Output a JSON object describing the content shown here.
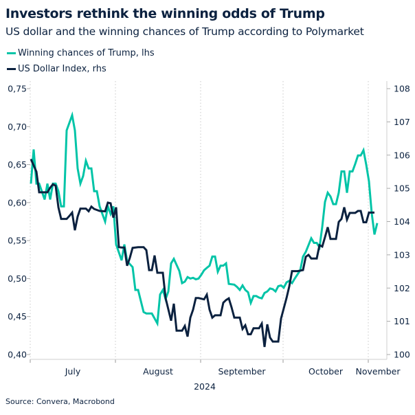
{
  "header": {
    "title": "Investors rethink the winning odds of Trump",
    "subtitle": "US dollar and the winning chances of Trump according to Polymarket"
  },
  "source": "Source: Convera, Macrobond",
  "colors": {
    "trump": "#00c4a7",
    "dxy": "#0b213f"
  },
  "chart_data": {
    "type": "line",
    "title": "Investors rethink the winning odds of Trump",
    "subtitle": "US dollar and the winning chances of Trump according to Polymarket",
    "year": "2024",
    "x_ticks": [
      "July",
      "August",
      "September",
      "October",
      "November"
    ],
    "y_left": {
      "ticks": [
        "0,40",
        "0,45",
        "0,50",
        "0,55",
        "0,60",
        "0,65",
        "0,70",
        "0,75"
      ],
      "range": [
        0.4,
        0.75
      ]
    },
    "y_right": {
      "ticks": [
        "100",
        "101",
        "102",
        "103",
        "104",
        "105",
        "106",
        "107",
        "108"
      ],
      "range": [
        100,
        108
      ]
    },
    "xlim": [
      "2024-07-01",
      "2024-11-05"
    ],
    "legend": "top-left",
    "grid": "vertical dotted lines at month starts",
    "series": [
      {
        "name": "Winning chances of Trump, lhs",
        "axis": "left",
        "color": "#00c4a7",
        "points": [
          [
            "2024-07-01",
            0.625
          ],
          [
            "2024-07-02",
            0.67
          ],
          [
            "2024-07-03",
            0.625
          ],
          [
            "2024-07-04",
            0.625
          ],
          [
            "2024-07-06",
            0.604
          ],
          [
            "2024-07-07",
            0.625
          ],
          [
            "2024-07-08",
            0.604
          ],
          [
            "2024-07-09",
            0.625
          ],
          [
            "2024-07-10",
            0.625
          ],
          [
            "2024-07-11",
            0.615
          ],
          [
            "2024-07-12",
            0.595
          ],
          [
            "2024-07-13",
            0.595
          ],
          [
            "2024-07-14",
            0.695
          ],
          [
            "2024-07-16",
            0.715
          ],
          [
            "2024-07-17",
            0.695
          ],
          [
            "2024-07-18",
            0.645
          ],
          [
            "2024-07-19",
            0.625
          ],
          [
            "2024-07-20",
            0.635
          ],
          [
            "2024-07-21",
            0.655
          ],
          [
            "2024-07-22",
            0.645
          ],
          [
            "2024-07-23",
            0.645
          ],
          [
            "2024-07-24",
            0.615
          ],
          [
            "2024-07-25",
            0.615
          ],
          [
            "2024-07-26",
            0.595
          ],
          [
            "2024-07-28",
            0.575
          ],
          [
            "2024-07-29",
            0.595
          ],
          [
            "2024-07-30",
            0.585
          ],
          [
            "2024-07-31",
            0.595
          ],
          [
            "2024-08-01",
            0.545
          ],
          [
            "2024-08-03",
            0.524
          ],
          [
            "2024-08-04",
            0.545
          ],
          [
            "2024-08-05",
            0.523
          ],
          [
            "2024-08-07",
            0.515
          ],
          [
            "2024-08-08",
            0.485
          ],
          [
            "2024-08-09",
            0.485
          ],
          [
            "2024-08-11",
            0.456
          ],
          [
            "2024-08-12",
            0.454
          ],
          [
            "2024-08-14",
            0.454
          ],
          [
            "2024-08-16",
            0.441
          ],
          [
            "2024-08-17",
            0.479
          ],
          [
            "2024-08-18",
            0.485
          ],
          [
            "2024-08-19",
            0.473
          ],
          [
            "2024-08-20",
            0.483
          ],
          [
            "2024-08-21",
            0.52
          ],
          [
            "2024-08-22",
            0.526
          ],
          [
            "2024-08-24",
            0.51
          ],
          [
            "2024-08-25",
            0.494
          ],
          [
            "2024-08-26",
            0.496
          ],
          [
            "2024-08-27",
            0.502
          ],
          [
            "2024-08-28",
            0.5
          ],
          [
            "2024-08-29",
            0.501
          ],
          [
            "2024-08-30",
            0.499
          ],
          [
            "2024-08-31",
            0.5
          ],
          [
            "2024-09-01",
            0.505
          ],
          [
            "2024-09-02",
            0.511
          ],
          [
            "2024-09-03",
            0.514
          ],
          [
            "2024-09-04",
            0.517
          ],
          [
            "2024-09-05",
            0.529
          ],
          [
            "2024-09-06",
            0.529
          ],
          [
            "2024-09-07",
            0.509
          ],
          [
            "2024-09-08",
            0.517
          ],
          [
            "2024-09-09",
            0.517
          ],
          [
            "2024-09-10",
            0.52
          ],
          [
            "2024-09-11",
            0.493
          ],
          [
            "2024-09-13",
            0.492
          ],
          [
            "2024-09-14",
            0.489
          ],
          [
            "2024-09-15",
            0.485
          ],
          [
            "2024-09-16",
            0.491
          ],
          [
            "2024-09-17",
            0.485
          ],
          [
            "2024-09-18",
            0.482
          ],
          [
            "2024-09-19",
            0.468
          ],
          [
            "2024-09-20",
            0.477
          ],
          [
            "2024-09-21",
            0.477
          ],
          [
            "2024-09-22",
            0.475
          ],
          [
            "2024-09-23",
            0.474
          ],
          [
            "2024-09-24",
            0.481
          ],
          [
            "2024-09-25",
            0.483
          ],
          [
            "2024-09-26",
            0.487
          ],
          [
            "2024-09-27",
            0.486
          ],
          [
            "2024-09-28",
            0.483
          ],
          [
            "2024-09-29",
            0.49
          ],
          [
            "2024-09-30",
            0.491
          ],
          [
            "2024-10-01",
            0.488
          ],
          [
            "2024-10-02",
            0.495
          ],
          [
            "2024-10-03",
            0.497
          ],
          [
            "2024-10-04",
            0.494
          ],
          [
            "2024-10-05",
            0.5
          ],
          [
            "2024-10-07",
            0.511
          ],
          [
            "2024-10-08",
            0.529
          ],
          [
            "2024-10-09",
            0.535
          ],
          [
            "2024-10-10",
            0.544
          ],
          [
            "2024-10-11",
            0.553
          ],
          [
            "2024-10-12",
            0.547
          ],
          [
            "2024-10-13",
            0.547
          ],
          [
            "2024-10-14",
            0.541
          ],
          [
            "2024-10-15",
            0.568
          ],
          [
            "2024-10-16",
            0.601
          ],
          [
            "2024-10-17",
            0.613
          ],
          [
            "2024-10-18",
            0.608
          ],
          [
            "2024-10-19",
            0.598
          ],
          [
            "2024-10-20",
            0.598
          ],
          [
            "2024-10-21",
            0.613
          ],
          [
            "2024-10-22",
            0.641
          ],
          [
            "2024-10-23",
            0.641
          ],
          [
            "2024-10-24",
            0.613
          ],
          [
            "2024-10-25",
            0.641
          ],
          [
            "2024-10-26",
            0.641
          ],
          [
            "2024-10-27",
            0.651
          ],
          [
            "2024-10-28",
            0.662
          ],
          [
            "2024-10-29",
            0.662
          ],
          [
            "2024-10-30",
            0.669
          ],
          [
            "2024-10-31",
            0.65
          ],
          [
            "2024-11-01",
            0.628
          ],
          [
            "2024-11-02",
            0.586
          ],
          [
            "2024-11-03",
            0.558
          ],
          [
            "2024-11-04",
            0.573
          ]
        ]
      },
      {
        "name": "US Dollar Index, rhs",
        "axis": "right",
        "color": "#0b213f",
        "points": [
          [
            "2024-07-01",
            105.88
          ],
          [
            "2024-07-03",
            105.5
          ],
          [
            "2024-07-04",
            104.88
          ],
          [
            "2024-07-05",
            104.88
          ],
          [
            "2024-07-07",
            104.88
          ],
          [
            "2024-07-08",
            105.02
          ],
          [
            "2024-07-09",
            105.12
          ],
          [
            "2024-07-10",
            105.08
          ],
          [
            "2024-07-11",
            104.43
          ],
          [
            "2024-07-12",
            104.08
          ],
          [
            "2024-07-14",
            104.08
          ],
          [
            "2024-07-15",
            104.17
          ],
          [
            "2024-07-16",
            104.27
          ],
          [
            "2024-07-17",
            103.74
          ],
          [
            "2024-07-18",
            104.15
          ],
          [
            "2024-07-19",
            104.39
          ],
          [
            "2024-07-21",
            104.39
          ],
          [
            "2024-07-22",
            104.31
          ],
          [
            "2024-07-23",
            104.45
          ],
          [
            "2024-07-24",
            104.38
          ],
          [
            "2024-07-26",
            104.32
          ],
          [
            "2024-07-28",
            104.31
          ],
          [
            "2024-07-29",
            104.57
          ],
          [
            "2024-07-30",
            104.55
          ],
          [
            "2024-07-31",
            104.12
          ],
          [
            "2024-08-01",
            104.43
          ],
          [
            "2024-08-02",
            103.23
          ],
          [
            "2024-08-03",
            103.22
          ],
          [
            "2024-08-04",
            103.22
          ],
          [
            "2024-08-05",
            102.67
          ],
          [
            "2024-08-06",
            102.91
          ],
          [
            "2024-08-07",
            103.21
          ],
          [
            "2024-08-09",
            103.23
          ],
          [
            "2024-08-11",
            103.23
          ],
          [
            "2024-08-12",
            103.14
          ],
          [
            "2024-08-13",
            102.54
          ],
          [
            "2024-08-14",
            102.54
          ],
          [
            "2024-08-15",
            102.98
          ],
          [
            "2024-08-16",
            102.46
          ],
          [
            "2024-08-18",
            102.46
          ],
          [
            "2024-08-19",
            101.7
          ],
          [
            "2024-08-21",
            101.02
          ],
          [
            "2024-08-22",
            101.53
          ],
          [
            "2024-08-23",
            100.72
          ],
          [
            "2024-08-25",
            100.72
          ],
          [
            "2024-08-26",
            100.86
          ],
          [
            "2024-08-27",
            100.54
          ],
          [
            "2024-08-28",
            101.11
          ],
          [
            "2024-08-29",
            101.35
          ],
          [
            "2024-08-30",
            101.7
          ],
          [
            "2024-08-31",
            101.7
          ],
          [
            "2024-09-02",
            101.66
          ],
          [
            "2024-09-03",
            101.8
          ],
          [
            "2024-09-04",
            101.35
          ],
          [
            "2024-09-05",
            101.11
          ],
          [
            "2024-09-06",
            101.18
          ],
          [
            "2024-09-08",
            101.18
          ],
          [
            "2024-09-09",
            101.56
          ],
          [
            "2024-09-10",
            101.64
          ],
          [
            "2024-09-11",
            101.69
          ],
          [
            "2024-09-12",
            101.42
          ],
          [
            "2024-09-13",
            101.11
          ],
          [
            "2024-09-15",
            101.11
          ],
          [
            "2024-09-16",
            100.77
          ],
          [
            "2024-09-17",
            100.88
          ],
          [
            "2024-09-18",
            100.61
          ],
          [
            "2024-09-19",
            100.61
          ],
          [
            "2024-09-20",
            100.79
          ],
          [
            "2024-09-22",
            100.79
          ],
          [
            "2024-09-23",
            100.93
          ],
          [
            "2024-09-24",
            100.23
          ],
          [
            "2024-09-25",
            100.91
          ],
          [
            "2024-09-26",
            100.51
          ],
          [
            "2024-09-27",
            100.39
          ],
          [
            "2024-09-29",
            100.39
          ],
          [
            "2024-09-30",
            101.08
          ],
          [
            "2024-10-02",
            101.7
          ],
          [
            "2024-10-03",
            102.05
          ],
          [
            "2024-10-04",
            102.51
          ],
          [
            "2024-10-06",
            102.51
          ],
          [
            "2024-10-08",
            102.54
          ],
          [
            "2024-10-09",
            102.94
          ],
          [
            "2024-10-10",
            103.0
          ],
          [
            "2024-10-11",
            102.89
          ],
          [
            "2024-10-13",
            102.89
          ],
          [
            "2024-10-14",
            103.29
          ],
          [
            "2024-10-15",
            103.25
          ],
          [
            "2024-10-16",
            103.53
          ],
          [
            "2024-10-17",
            103.83
          ],
          [
            "2024-10-18",
            103.48
          ],
          [
            "2024-10-20",
            103.48
          ],
          [
            "2024-10-21",
            103.99
          ],
          [
            "2024-10-22",
            104.08
          ],
          [
            "2024-10-23",
            104.43
          ],
          [
            "2024-10-24",
            104.06
          ],
          [
            "2024-10-25",
            104.26
          ],
          [
            "2024-10-27",
            104.26
          ],
          [
            "2024-10-28",
            104.32
          ],
          [
            "2024-10-29",
            104.32
          ],
          [
            "2024-10-30",
            103.98
          ],
          [
            "2024-10-31",
            103.98
          ],
          [
            "2024-11-01",
            104.27
          ],
          [
            "2024-11-03",
            104.27
          ]
        ]
      }
    ]
  }
}
